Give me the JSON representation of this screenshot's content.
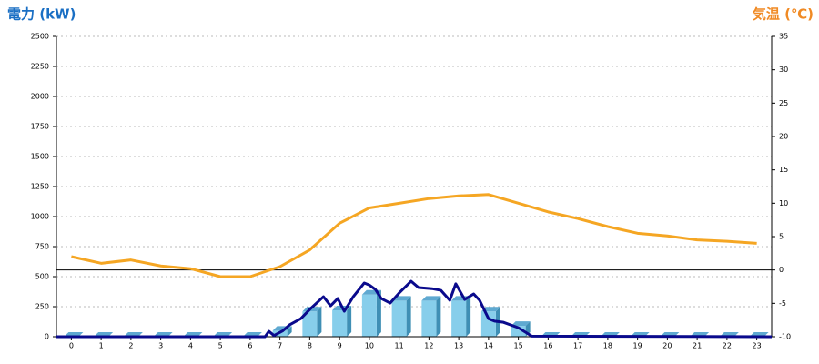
{
  "chart_data": {
    "type": "combo",
    "title": "電力 (kW)",
    "y2_title": "気温 (℃)",
    "title_color": "#1a6fc4",
    "y2_title_color": "#f08a24",
    "categories": [
      0,
      1,
      2,
      3,
      4,
      5,
      6,
      7,
      8,
      9,
      10,
      11,
      12,
      13,
      14,
      15,
      16,
      17,
      18,
      19,
      20,
      21,
      22,
      23
    ],
    "ylim": [
      0,
      2500
    ],
    "yticks": [
      0,
      250,
      500,
      750,
      1000,
      1250,
      1500,
      1750,
      2000,
      2250,
      2500
    ],
    "y2lim": [
      -10,
      35
    ],
    "y2ticks": [
      -10,
      -5,
      0,
      5,
      10,
      15,
      20,
      25,
      30,
      35
    ],
    "grid": true,
    "reference_line": {
      "axis": "y2",
      "value": 0
    },
    "bars": {
      "color": "#87ceeb",
      "values": [
        0,
        0,
        0,
        0,
        0,
        0,
        0,
        50,
        210,
        220,
        350,
        300,
        300,
        300,
        210,
        90,
        0,
        0,
        0,
        0,
        0,
        0,
        0,
        0
      ]
    },
    "power_line": {
      "color": "#0a0a8c",
      "x": [
        -0.5,
        6.5,
        6.63,
        6.8,
        7.1,
        7.33,
        7.7,
        8.0,
        8.46,
        8.7,
        8.94,
        9.16,
        9.46,
        9.83,
        10.0,
        10.2,
        10.4,
        10.7,
        11.0,
        11.4,
        11.65,
        12.1,
        12.4,
        12.7,
        12.9,
        13.2,
        13.5,
        13.7,
        14.0,
        14.2,
        14.5,
        15.0,
        15.45,
        23.5
      ],
      "values": [
        0,
        0,
        45,
        10,
        50,
        100,
        150,
        227,
        333,
        257,
        318,
        212,
        333,
        447,
        430,
        394,
        318,
        280,
        364,
        462,
        409,
        400,
        386,
        303,
        440,
        310,
        356,
        303,
        150,
        130,
        120,
        75,
        5,
        0
      ]
    },
    "temperature": {
      "color": "#f5a623",
      "axis": "y2",
      "values": [
        2,
        1,
        1.5,
        0.6,
        0.2,
        -1,
        -1,
        0.5,
        3,
        7,
        9.3,
        10,
        10.7,
        11.1,
        11.3,
        10,
        8.7,
        7.7,
        6.5,
        5.5,
        5.1,
        4.5,
        4.3,
        4
      ]
    }
  }
}
